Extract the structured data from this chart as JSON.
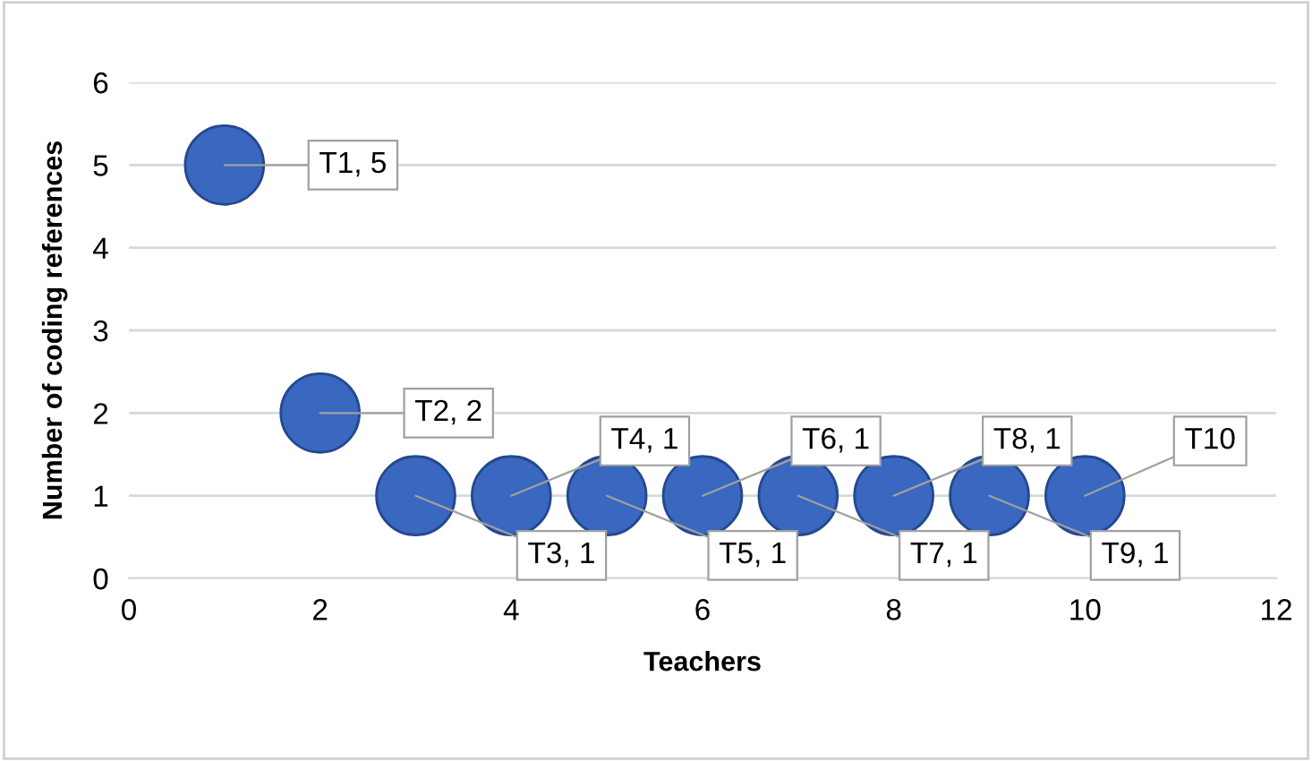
{
  "chart_data": {
    "type": "scatter",
    "xlabel": "Teachers",
    "ylabel": "Number of coding references",
    "x": [
      1,
      2,
      3,
      4,
      5,
      6,
      7,
      8,
      9,
      10
    ],
    "series": [
      {
        "color": "#3a68c0",
        "values": [
          5,
          2,
          1,
          1,
          1,
          1,
          1,
          1,
          1,
          1
        ],
        "value_labels": [
          "T1, 5",
          "T2, 2",
          "T3, 1",
          "T4, 1",
          "T5, 1",
          "T6, 1",
          "T7, 1",
          "T8, 1",
          "T9, 1",
          "T10"
        ]
      }
    ],
    "marker": "circle",
    "xlim": [
      0,
      12
    ],
    "xticks": [
      0,
      2,
      4,
      6,
      8,
      10,
      12
    ],
    "ylim": [
      0,
      6
    ],
    "yticks": [
      0,
      1,
      2,
      3,
      4,
      5,
      6
    ],
    "grid": "y"
  }
}
